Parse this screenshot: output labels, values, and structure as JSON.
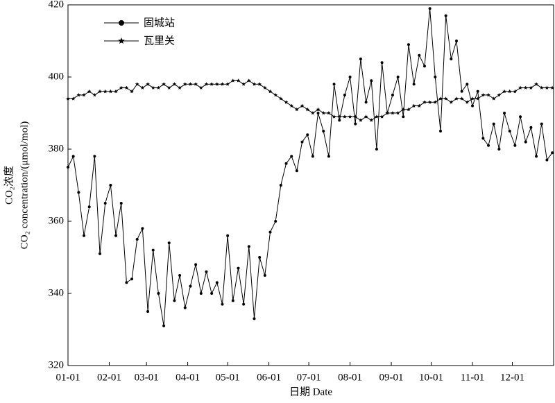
{
  "chart_data": {
    "type": "line",
    "ylabel": [
      "CO₂浓度",
      "CO₂ concentration/(μmol/mol)"
    ],
    "xlabel": "日期 Date",
    "x": [
      0,
      4,
      8,
      12,
      16,
      20,
      24,
      28,
      32,
      36,
      40,
      44,
      48,
      52,
      56,
      60,
      64,
      68,
      72,
      76,
      80,
      84,
      88,
      92,
      96,
      100,
      104,
      108,
      112,
      116,
      120,
      124,
      128,
      132,
      136,
      140,
      144,
      148,
      152,
      156,
      160,
      164,
      168,
      172,
      176,
      180,
      184,
      188,
      192,
      196,
      200,
      204,
      208,
      212,
      216,
      220,
      224,
      228,
      232,
      236,
      240,
      244,
      248,
      252,
      256,
      260,
      264,
      268,
      272,
      276,
      280,
      284,
      288,
      292,
      296,
      300,
      304,
      308,
      312,
      316,
      320,
      324,
      328,
      332,
      336,
      340,
      344,
      348,
      352,
      356,
      360,
      364
    ],
    "xlim": [
      0,
      365
    ],
    "xticks": [
      {
        "value": 0,
        "label": "01-01"
      },
      {
        "value": 31,
        "label": "02-01"
      },
      {
        "value": 59,
        "label": "03-01"
      },
      {
        "value": 90,
        "label": "04-01"
      },
      {
        "value": 120,
        "label": "05-01"
      },
      {
        "value": 151,
        "label": "06-01"
      },
      {
        "value": 181,
        "label": "07-01"
      },
      {
        "value": 212,
        "label": "08-01"
      },
      {
        "value": 243,
        "label": "09-01"
      },
      {
        "value": 273,
        "label": "10-01"
      },
      {
        "value": 304,
        "label": "11-01"
      },
      {
        "value": 334,
        "label": "12-01"
      }
    ],
    "ylim": [
      320,
      420
    ],
    "yticks": [
      320,
      340,
      360,
      380,
      400,
      420
    ],
    "legend": "upper-left",
    "series": [
      {
        "name": "固城站",
        "color": "#000000",
        "marker": "circle",
        "values": [
          375,
          378,
          368,
          356,
          364,
          378,
          351,
          365,
          370,
          356,
          365,
          343,
          344,
          355,
          358,
          335,
          352,
          340,
          331,
          354,
          338,
          345,
          336,
          342,
          348,
          340,
          346,
          340,
          343,
          337,
          356,
          338,
          347,
          337,
          353,
          333,
          350,
          345,
          357,
          360,
          370,
          376,
          378,
          374,
          382,
          384,
          378,
          390,
          385,
          378,
          398,
          388,
          395,
          400,
          387,
          405,
          393,
          399,
          380,
          404,
          390,
          395,
          400,
          389,
          409,
          398,
          406,
          403,
          419,
          400,
          385,
          417,
          405,
          410,
          396,
          398,
          392,
          396,
          383,
          381,
          387,
          380,
          390,
          385,
          381,
          389,
          382,
          386,
          378,
          387,
          377,
          379
        ]
      },
      {
        "name": "瓦里关",
        "color": "#000000",
        "marker": "star",
        "values": [
          394,
          394,
          395,
          395,
          396,
          395,
          396,
          396,
          396,
          396,
          397,
          397,
          396,
          398,
          397,
          398,
          397,
          397,
          398,
          397,
          398,
          397,
          398,
          398,
          398,
          397,
          398,
          398,
          398,
          398,
          398,
          399,
          399,
          398,
          399,
          398,
          398,
          397,
          396,
          395,
          394,
          393,
          392,
          391,
          392,
          391,
          390,
          391,
          390,
          390,
          389,
          389,
          389,
          389,
          389,
          388,
          389,
          388,
          389,
          389,
          390,
          390,
          390,
          391,
          391,
          392,
          392,
          393,
          393,
          393,
          394,
          394,
          393,
          394,
          394,
          393,
          394,
          394,
          395,
          395,
          394,
          395,
          396,
          396,
          396,
          397,
          397,
          397,
          398,
          397,
          397,
          397
        ]
      }
    ]
  }
}
